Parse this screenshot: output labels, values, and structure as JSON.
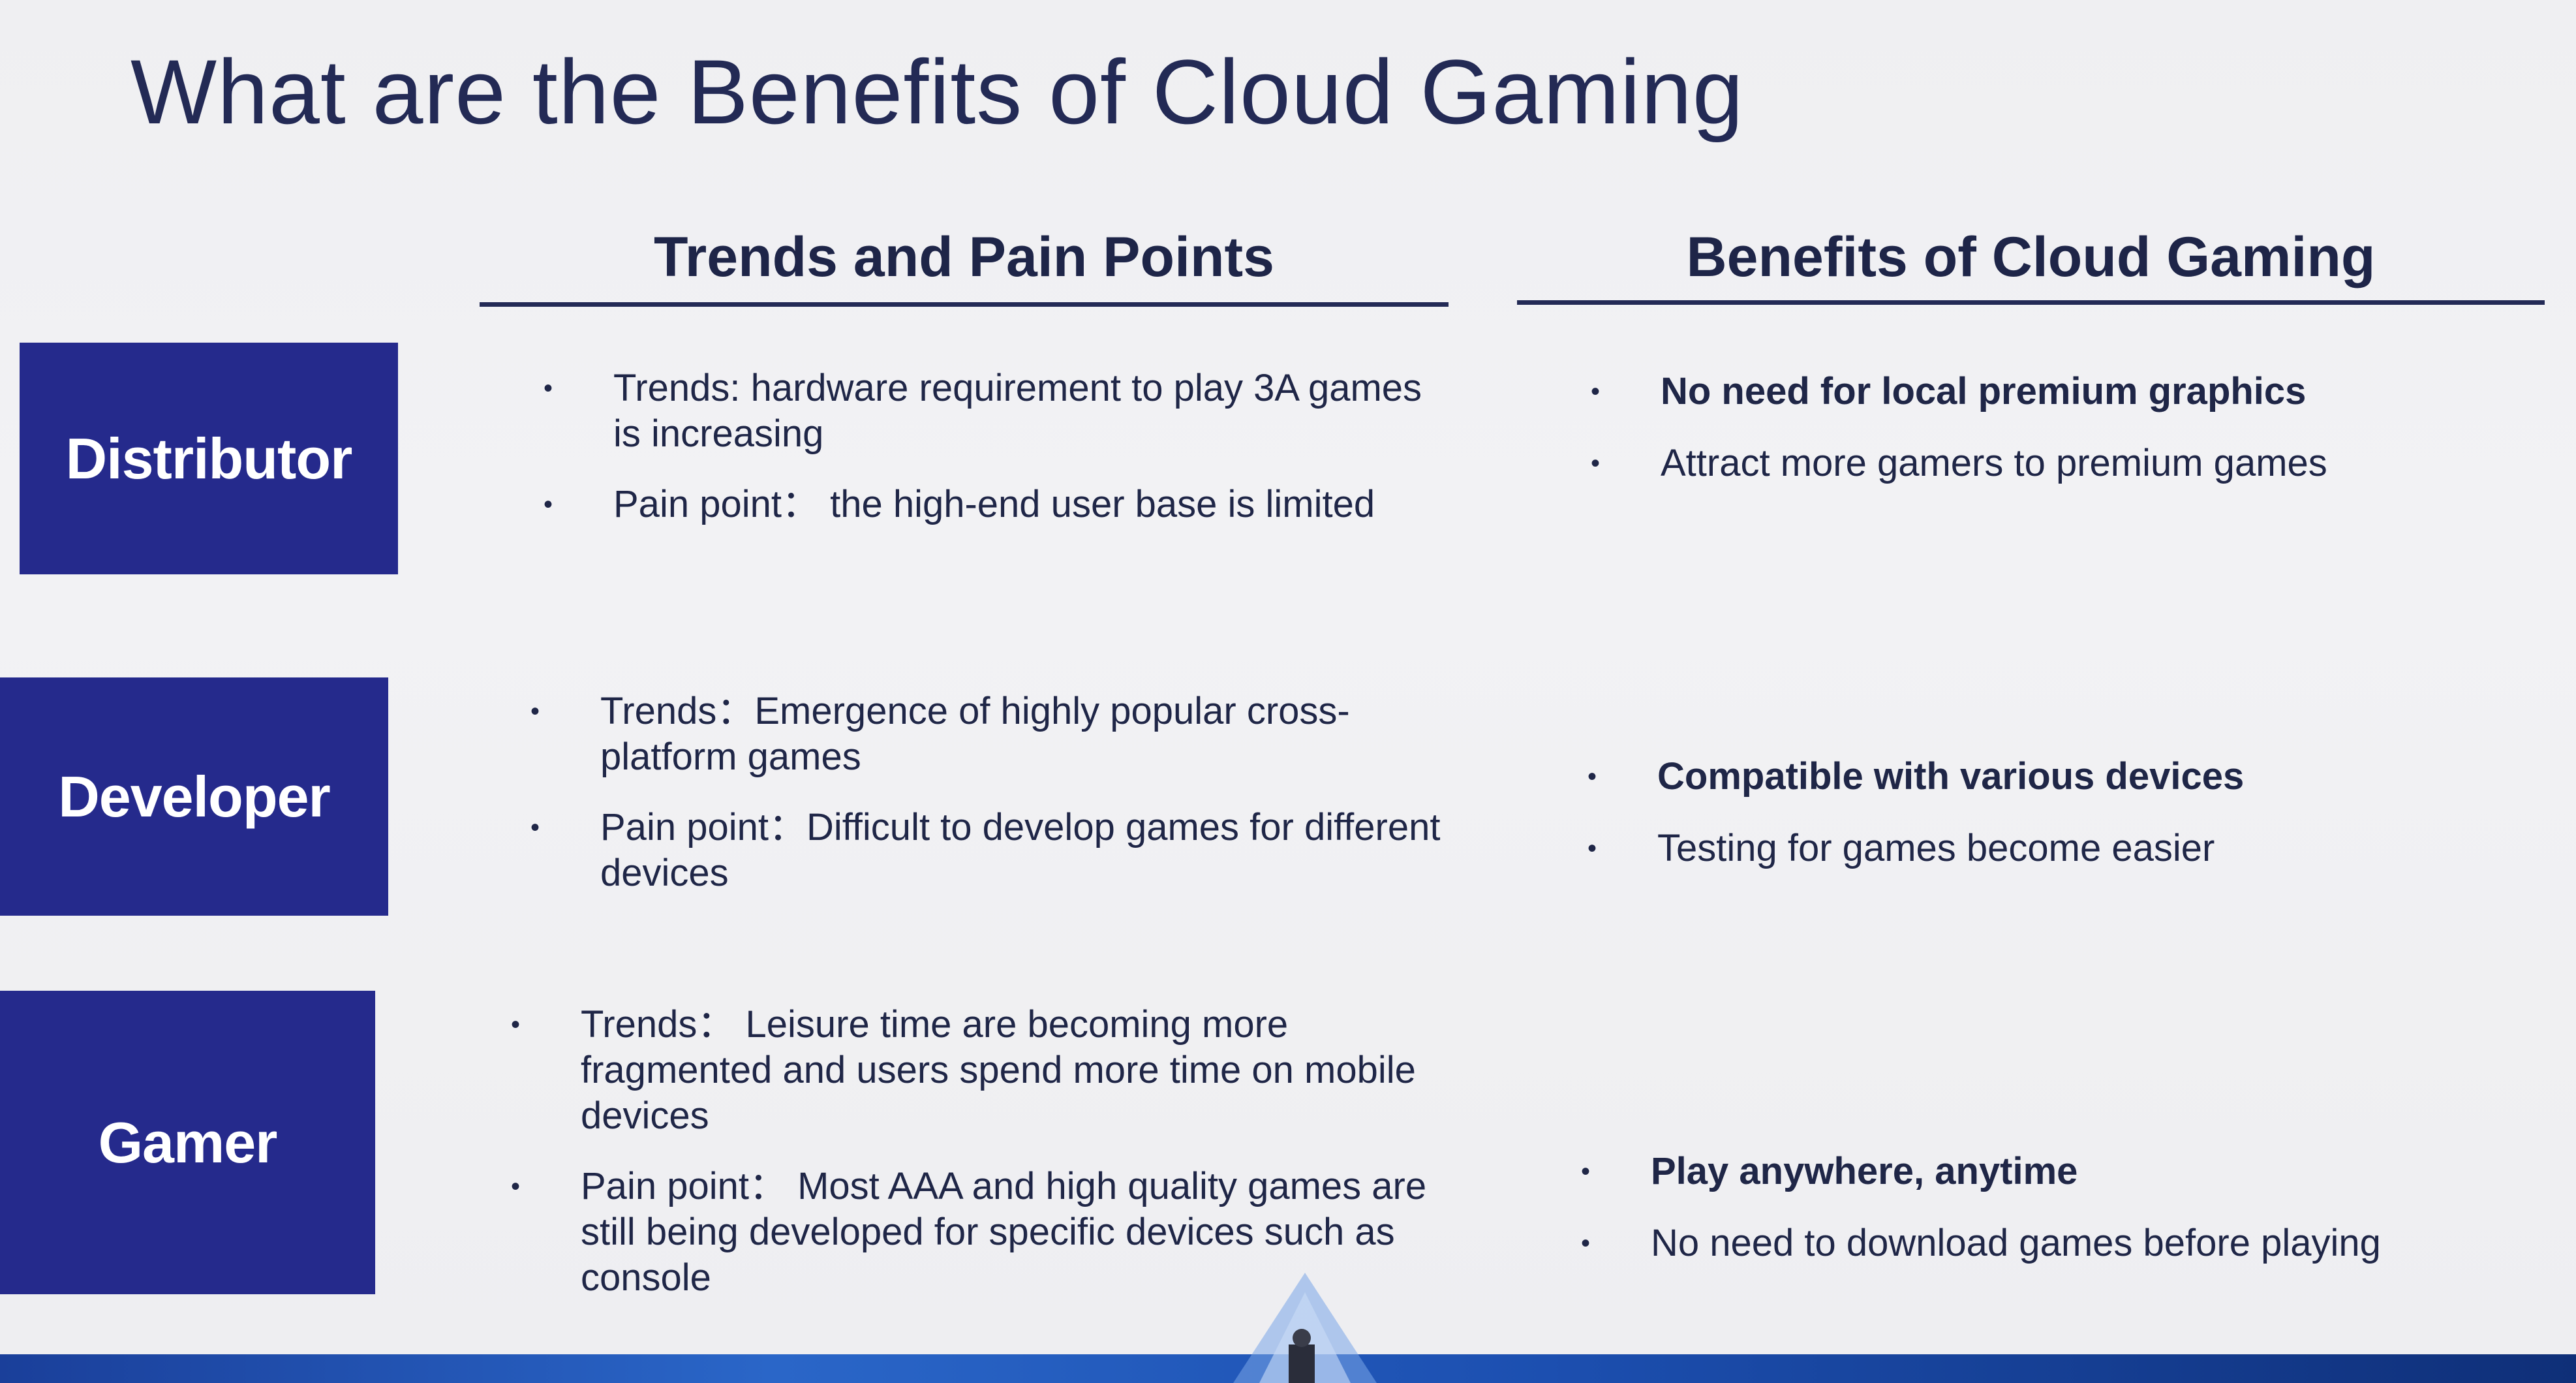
{
  "slide": {
    "title": "What are the Benefits of Cloud Gaming",
    "columns": {
      "pain_header": "Trends and Pain Points",
      "benefit_header": "Benefits of Cloud Gaming"
    },
    "rows": [
      {
        "role": "Distributor",
        "pain_points": [
          "Trends: hardware requirement to play  3A games is increasing",
          "Pain point： the high-end user base is limited"
        ],
        "benefits": [
          "No need for local premium graphics",
          "Attract more gamers to premium games"
        ]
      },
      {
        "role": "Developer",
        "pain_points": [
          "Trends：Emergence of highly popular cross-platform games",
          "Pain point：Difficult to develop games for different devices"
        ],
        "benefits": [
          "Compatible with various devices",
          "Testing for games become easier"
        ]
      },
      {
        "role": "Gamer",
        "pain_points": [
          "Trends： Leisure time are becoming more fragmented and users spend more time on mobile devices",
          "Pain point： Most AAA and high quality games are still being developed for specific devices such as console"
        ],
        "benefits": [
          "Play anywhere, anytime",
          "No need to download games before playing"
        ]
      }
    ],
    "bullet_glyph": "•"
  },
  "colors": {
    "role_box": "#252a8c",
    "text": "#1e2548",
    "background": "#efeff2"
  }
}
